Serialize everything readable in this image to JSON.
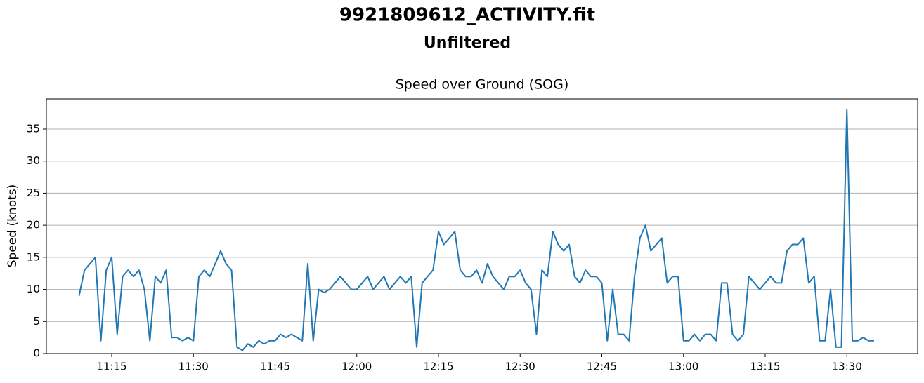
{
  "chart_data": {
    "type": "line",
    "title": "9921809612_ACTIVITY.fit",
    "subtitle": "Unfiltered",
    "plot_title": "Speed over Ground (SOG)",
    "y_label": "Speed (knots)",
    "x": [
      "11:09",
      "11:10",
      "11:11",
      "11:12",
      "11:13",
      "11:14",
      "11:15",
      "11:16",
      "11:17",
      "11:18",
      "11:19",
      "11:20",
      "11:21",
      "11:22",
      "11:23",
      "11:24",
      "11:25",
      "11:26",
      "11:27",
      "11:28",
      "11:29",
      "11:30",
      "11:31",
      "11:32",
      "11:33",
      "11:34",
      "11:35",
      "11:36",
      "11:37",
      "11:38",
      "11:39",
      "11:40",
      "11:41",
      "11:42",
      "11:43",
      "11:44",
      "11:45",
      "11:46",
      "11:47",
      "11:48",
      "11:49",
      "11:50",
      "11:51",
      "11:52",
      "11:53",
      "11:54",
      "11:55",
      "11:56",
      "11:57",
      "11:58",
      "11:59",
      "12:00",
      "12:01",
      "12:02",
      "12:03",
      "12:04",
      "12:05",
      "12:06",
      "12:07",
      "12:08",
      "12:09",
      "12:10",
      "12:11",
      "12:12",
      "12:13",
      "12:14",
      "12:15",
      "12:16",
      "12:17",
      "12:18",
      "12:19",
      "12:20",
      "12:21",
      "12:22",
      "12:23",
      "12:24",
      "12:25",
      "12:26",
      "12:27",
      "12:28",
      "12:29",
      "12:30",
      "12:31",
      "12:32",
      "12:33",
      "12:34",
      "12:35",
      "12:36",
      "12:37",
      "12:38",
      "12:39",
      "12:40",
      "12:41",
      "12:42",
      "12:43",
      "12:44",
      "12:45",
      "12:46",
      "12:47",
      "12:48",
      "12:49",
      "12:50",
      "12:51",
      "12:52",
      "12:53",
      "12:54",
      "12:55",
      "12:56",
      "12:57",
      "12:58",
      "12:59",
      "13:00",
      "13:01",
      "13:02",
      "13:03",
      "13:04",
      "13:05",
      "13:06",
      "13:07",
      "13:08",
      "13:09",
      "13:10",
      "13:11",
      "13:12",
      "13:13",
      "13:14",
      "13:15",
      "13:16",
      "13:17",
      "13:18",
      "13:19",
      "13:20",
      "13:21",
      "13:22",
      "13:23",
      "13:24",
      "13:25",
      "13:26",
      "13:27",
      "13:28",
      "13:29",
      "13:30",
      "13:31",
      "13:32",
      "13:33",
      "13:34",
      "13:35"
    ],
    "series": [
      {
        "name": "SOG",
        "color": "#1f77b4",
        "values": [
          9,
          13,
          14,
          15,
          2,
          13,
          15,
          3,
          12,
          13,
          12,
          13,
          10,
          2,
          12,
          11,
          13,
          2.5,
          2.5,
          2,
          2.5,
          2,
          12,
          13,
          12,
          14,
          16,
          14,
          13,
          1,
          0.5,
          1.5,
          1,
          2,
          1.5,
          2,
          2,
          3,
          2.5,
          3,
          2.5,
          2,
          14,
          2,
          10,
          9.5,
          10,
          11,
          12,
          11,
          10,
          10,
          11,
          12,
          10,
          11,
          12,
          10,
          11,
          12,
          11,
          12,
          1,
          11,
          12,
          13,
          19,
          17,
          18,
          19,
          13,
          12,
          12,
          13,
          11,
          14,
          12,
          11,
          10,
          12,
          12,
          13,
          11,
          10,
          3,
          13,
          12,
          19,
          17,
          16,
          17,
          12,
          11,
          13,
          12,
          12,
          11,
          2,
          10,
          3,
          3,
          2,
          12,
          18,
          20,
          16,
          17,
          18,
          11,
          12,
          12,
          2,
          2,
          3,
          2,
          3,
          3,
          2,
          11,
          11,
          3,
          2,
          3,
          12,
          11,
          10,
          11,
          12,
          11,
          11,
          16,
          17,
          17,
          18,
          11,
          12,
          2,
          2,
          10,
          1,
          1,
          38,
          2,
          2,
          2.5,
          2,
          2
        ]
      }
    ],
    "xlim": [
      "11:03",
      "13:43"
    ],
    "xticks": [
      "11:15",
      "11:30",
      "11:45",
      "12:00",
      "12:15",
      "12:30",
      "12:45",
      "13:00",
      "13:15",
      "13:30"
    ],
    "ylim": [
      0,
      39.7
    ],
    "yticks": [
      0,
      5,
      10,
      15,
      20,
      25,
      30,
      35
    ],
    "grid": true
  }
}
